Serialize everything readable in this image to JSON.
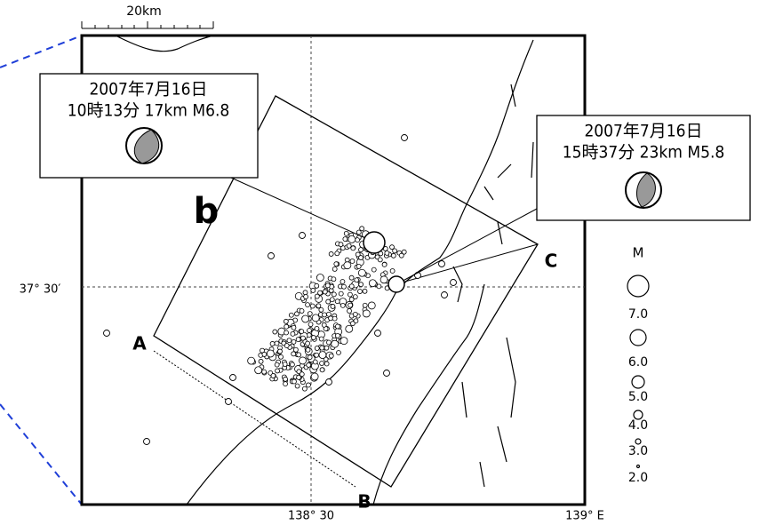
{
  "scale_label": "20km",
  "callouts": [
    {
      "date": "2007年7月16日",
      "detail": "10時13分 17km  M6.8"
    },
    {
      "date": "2007年7月16日",
      "detail": "15時37分 23km  M5.8"
    }
  ],
  "section_label": "b",
  "profile_points": [
    "A",
    "B",
    "C"
  ],
  "axis_labels": {
    "lat": "37° 30′",
    "lon_mid": "138° 30",
    "lon_right": "139° E"
  },
  "legend": {
    "title": "M",
    "magnitudes": [
      "7.0",
      "6.0",
      "5.0",
      "4.0",
      "3.0",
      "2.0"
    ]
  }
}
